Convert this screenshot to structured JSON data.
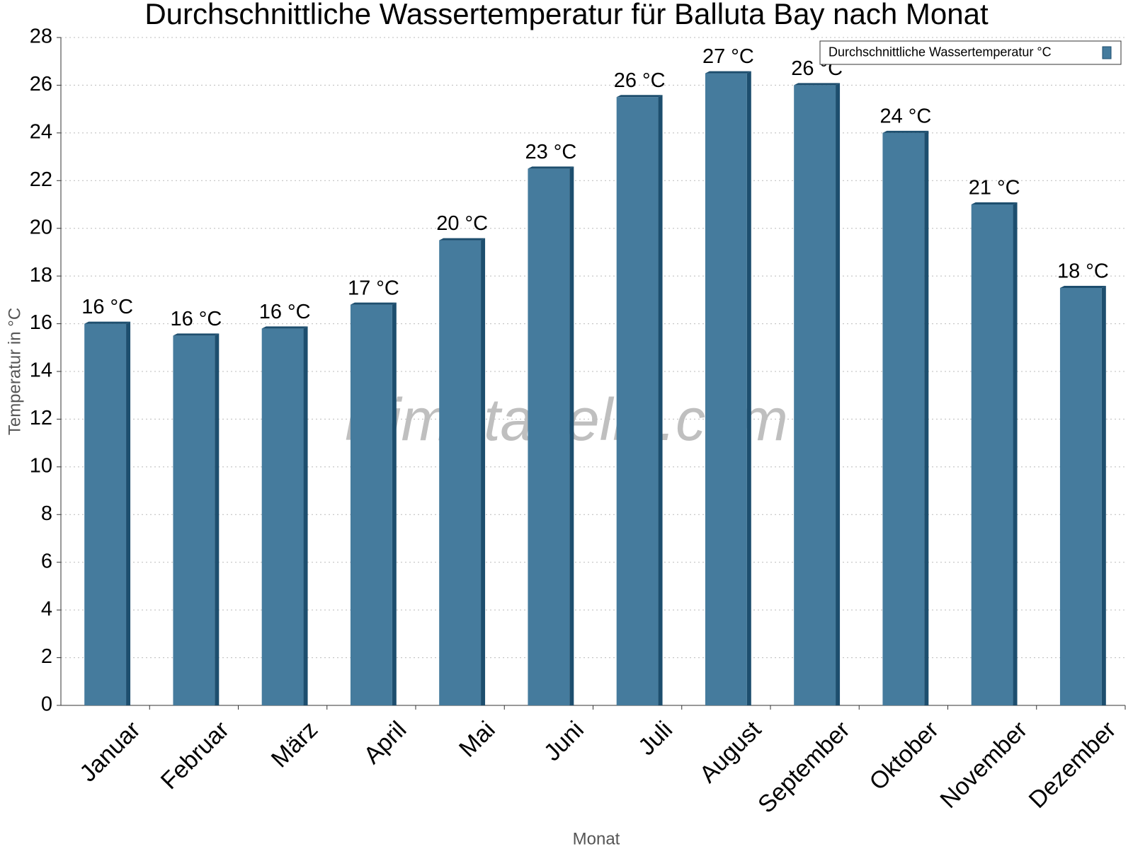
{
  "chart_data": {
    "type": "bar",
    "title": "Durchschnittliche Wassertemperatur für Balluta Bay nach Monat",
    "x_label": "Monat",
    "y_label": "Temperatur in °C",
    "watermark": "klimatabelle.com",
    "categories": [
      "Januar",
      "Februar",
      "März",
      "April",
      "Mai",
      "Juni",
      "Juli",
      "August",
      "September",
      "Oktober",
      "November",
      "Dezember"
    ],
    "series": [
      {
        "name": "Durchschnittliche Wassertemperatur °C",
        "color": "#457b9d",
        "values": [
          16.0,
          15.5,
          15.8,
          16.8,
          19.5,
          22.5,
          25.5,
          26.5,
          26.0,
          24.0,
          21.0,
          17.5
        ],
        "value_labels": [
          "16 °C",
          "16 °C",
          "16 °C",
          "17 °C",
          "20 °C",
          "23 °C",
          "26 °C",
          "27 °C",
          "26 °C",
          "24 °C",
          "21 °C",
          "18 °C"
        ]
      }
    ],
    "ylim": [
      0,
      28
    ],
    "yticks": [
      0,
      2,
      4,
      6,
      8,
      10,
      12,
      14,
      16,
      18,
      20,
      22,
      24,
      26,
      28
    ],
    "grid": true,
    "legend": "top-right"
  }
}
